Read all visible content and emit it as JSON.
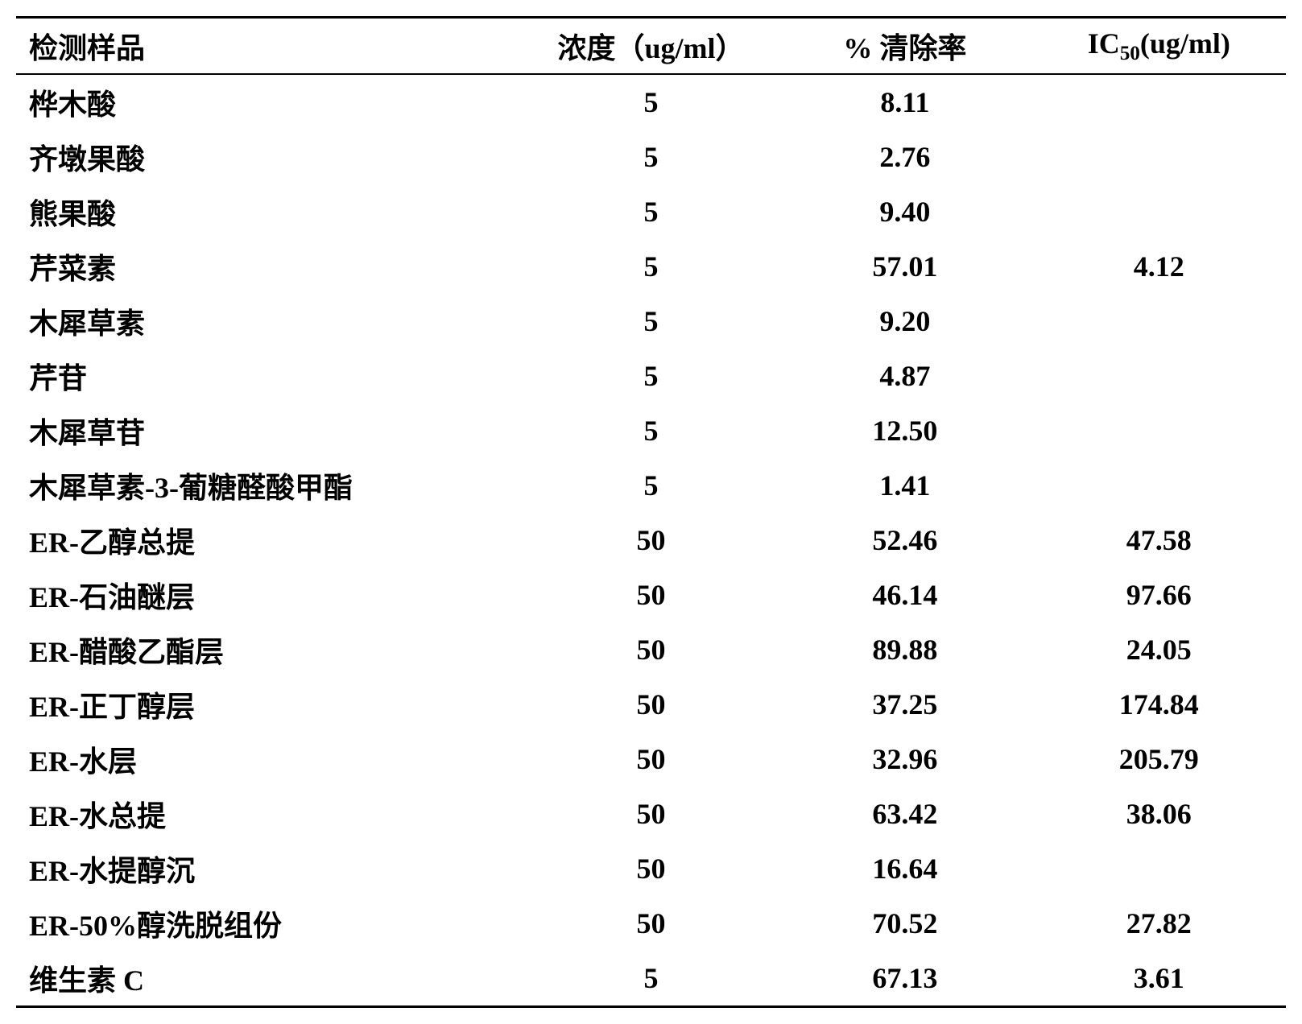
{
  "table": {
    "type": "table",
    "background_color": "#ffffff",
    "text_color": "#000000",
    "border_color": "#000000",
    "font_family": "SimSun",
    "header_fontsize": 36,
    "body_fontsize": 36,
    "border_top_width": 3,
    "border_header_width": 2,
    "border_bottom_width": 3,
    "columns": [
      {
        "key": "sample",
        "label": "检测样品",
        "align": "left",
        "width": "40%"
      },
      {
        "key": "concentration",
        "label": "浓度（ug/ml）",
        "align": "center",
        "width": "20%"
      },
      {
        "key": "clearance",
        "label": "% 清除率",
        "align": "center",
        "width": "20%"
      },
      {
        "key": "ic50",
        "label": "IC₅₀(ug/ml)",
        "align": "center",
        "width": "20%"
      }
    ],
    "rows": [
      {
        "sample": "桦木酸",
        "concentration": "5",
        "clearance": "8.11",
        "ic50": ""
      },
      {
        "sample": "齐墩果酸",
        "concentration": "5",
        "clearance": "2.76",
        "ic50": ""
      },
      {
        "sample": "熊果酸",
        "concentration": "5",
        "clearance": "9.40",
        "ic50": ""
      },
      {
        "sample": "芹菜素",
        "concentration": "5",
        "clearance": "57.01",
        "ic50": "4.12"
      },
      {
        "sample": "木犀草素",
        "concentration": "5",
        "clearance": "9.20",
        "ic50": ""
      },
      {
        "sample": "芹苷",
        "concentration": "5",
        "clearance": "4.87",
        "ic50": ""
      },
      {
        "sample": "木犀草苷",
        "concentration": "5",
        "clearance": "12.50",
        "ic50": ""
      },
      {
        "sample": "木犀草素-3-葡糖醛酸甲酯",
        "concentration": "5",
        "clearance": "1.41",
        "ic50": ""
      },
      {
        "sample": "ER-乙醇总提",
        "concentration": "50",
        "clearance": "52.46",
        "ic50": "47.58"
      },
      {
        "sample": "ER-石油醚层",
        "concentration": "50",
        "clearance": "46.14",
        "ic50": "97.66"
      },
      {
        "sample": "ER-醋酸乙酯层",
        "concentration": "50",
        "clearance": "89.88",
        "ic50": "24.05"
      },
      {
        "sample": "ER-正丁醇层",
        "concentration": "50",
        "clearance": "37.25",
        "ic50": "174.84"
      },
      {
        "sample": "ER-水层",
        "concentration": "50",
        "clearance": "32.96",
        "ic50": "205.79"
      },
      {
        "sample": "ER-水总提",
        "concentration": "50",
        "clearance": "63.42",
        "ic50": "38.06"
      },
      {
        "sample": "ER-水提醇沉",
        "concentration": "50",
        "clearance": "16.64",
        "ic50": ""
      },
      {
        "sample": "ER-50%醇洗脱组份",
        "concentration": "50",
        "clearance": "70.52",
        "ic50": "27.82"
      },
      {
        "sample": "维生素 C",
        "concentration": "5",
        "clearance": "67.13",
        "ic50": "3.61"
      }
    ]
  }
}
